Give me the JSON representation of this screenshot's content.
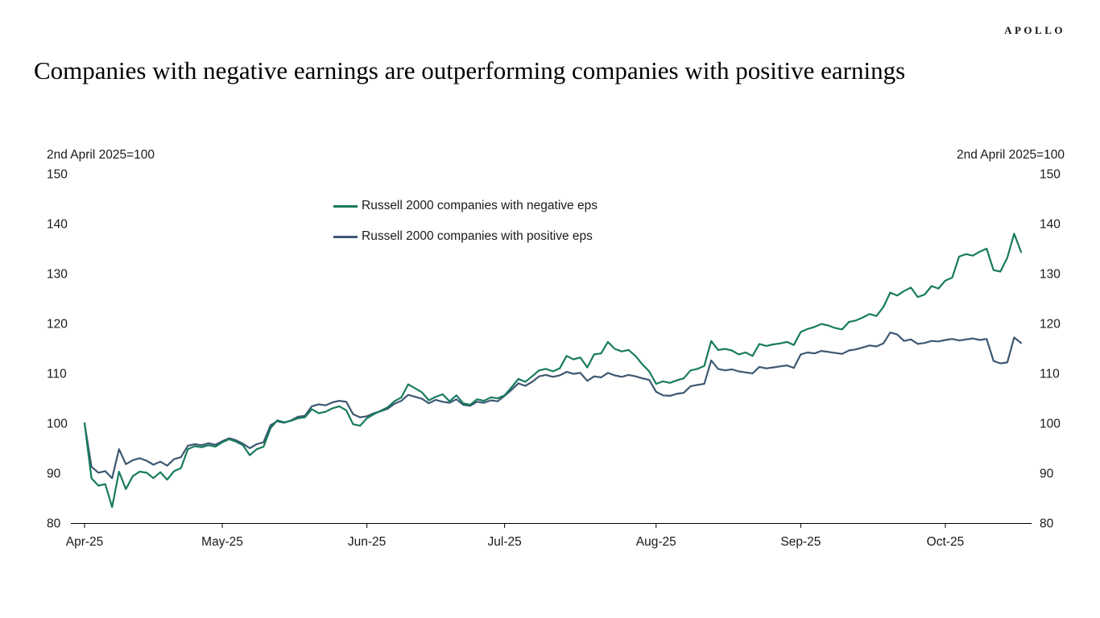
{
  "brand": {
    "logo": "APOLLO"
  },
  "chart_data": {
    "type": "line",
    "title": "Companies with negative earnings are outperforming companies with positive earnings",
    "axis_note_left": "2nd April 2025=100",
    "axis_note_right": "2nd April 2025=100",
    "ylim": [
      80,
      150
    ],
    "y_ticks": [
      80,
      90,
      100,
      110,
      120,
      130,
      140,
      150
    ],
    "x_tick_labels": [
      "Apr-25",
      "May-25",
      "Jun-25",
      "Jul-25",
      "Aug-25",
      "Sep-25",
      "Oct-25"
    ],
    "x_tick_indices": [
      0,
      20,
      41,
      61,
      83,
      104,
      125
    ],
    "grid": false,
    "legend_position": "upper-center-left",
    "series": [
      {
        "name": "Russell 2000 companies with negative eps",
        "color": "#177b5e",
        "values": [
          100,
          89,
          87.5,
          87.8,
          83.2,
          90.3,
          86.8,
          89.4,
          90.3,
          90.1,
          89,
          90.2,
          88.7,
          90.4,
          91,
          94.8,
          95.4,
          95.2,
          95.6,
          95.3,
          96.2,
          96.8,
          96.3,
          95.6,
          93.6,
          94.8,
          95.3,
          99,
          100.6,
          100.2,
          100.5,
          101,
          101.2,
          102.8,
          102,
          102.3,
          103,
          103.4,
          102.6,
          99.8,
          99.5,
          101,
          101.8,
          102.5,
          103.2,
          104.4,
          105.2,
          107.8,
          107,
          106.2,
          104.6,
          105.3,
          105.8,
          104.4,
          105.6,
          104,
          103.7,
          104.8,
          104.5,
          105.2,
          105,
          105.6,
          107.2,
          108.9,
          108.3,
          109.4,
          110.6,
          110.9,
          110.4,
          111,
          113.5,
          112.8,
          113.2,
          111.2,
          113.8,
          114,
          116.3,
          114.9,
          114.4,
          114.7,
          113.5,
          111.8,
          110.4,
          107.9,
          108.4,
          108.1,
          108.6,
          109,
          110.6,
          110.9,
          111.5,
          116.5,
          114.7,
          114.9,
          114.6,
          113.8,
          114.2,
          113.5,
          115.9,
          115.5,
          115.8,
          116,
          116.3,
          115.7,
          118.3,
          118.9,
          119.3,
          119.9,
          119.6,
          119.1,
          118.8,
          120.3,
          120.6,
          121.2,
          121.9,
          121.5,
          123.3,
          126.2,
          125.6,
          126.5,
          127.2,
          125.3,
          125.8,
          127.5,
          127,
          128.6,
          129.2,
          133.4,
          133.9,
          133.6,
          134.4,
          135,
          130.7,
          130.4,
          133.2,
          138,
          134.3
        ]
      },
      {
        "name": "Russell 2000 companies with positive eps",
        "color": "#3e5871",
        "values": [
          100,
          91.3,
          90.1,
          90.4,
          89,
          94.8,
          91.8,
          92.6,
          93,
          92.5,
          91.7,
          92.3,
          91.5,
          92.8,
          93.2,
          95.5,
          95.8,
          95.6,
          96,
          95.7,
          96.4,
          97,
          96.6,
          95.9,
          95,
          95.8,
          96.2,
          99.6,
          100.4,
          100.1,
          100.6,
          101.3,
          101.5,
          103.4,
          103.8,
          103.6,
          104.2,
          104.5,
          104.3,
          101.8,
          101.2,
          101.4,
          102,
          102.4,
          102.9,
          103.9,
          104.5,
          105.7,
          105.3,
          104.9,
          104,
          104.7,
          104.3,
          104.1,
          104.8,
          103.7,
          103.5,
          104.3,
          104.1,
          104.6,
          104.4,
          105.5,
          106.7,
          108,
          107.5,
          108.3,
          109.4,
          109.7,
          109.3,
          109.6,
          110.3,
          109.9,
          110.1,
          108.5,
          109.4,
          109.2,
          110.1,
          109.6,
          109.3,
          109.7,
          109.4,
          109,
          108.7,
          106.3,
          105.6,
          105.5,
          105.9,
          106.1,
          107.4,
          107.7,
          107.9,
          112.6,
          110.9,
          110.6,
          110.8,
          110.4,
          110.2,
          110,
          111.3,
          111,
          111.2,
          111.4,
          111.6,
          111.1,
          113.8,
          114.2,
          114,
          114.5,
          114.3,
          114.1,
          113.9,
          114.6,
          114.8,
          115.2,
          115.6,
          115.4,
          116,
          118.2,
          117.8,
          116.5,
          116.8,
          115.9,
          116.1,
          116.5,
          116.4,
          116.7,
          116.9,
          116.6,
          116.8,
          117,
          116.7,
          116.9,
          112.5,
          112,
          112.2,
          117.2,
          116.1
        ]
      }
    ]
  }
}
